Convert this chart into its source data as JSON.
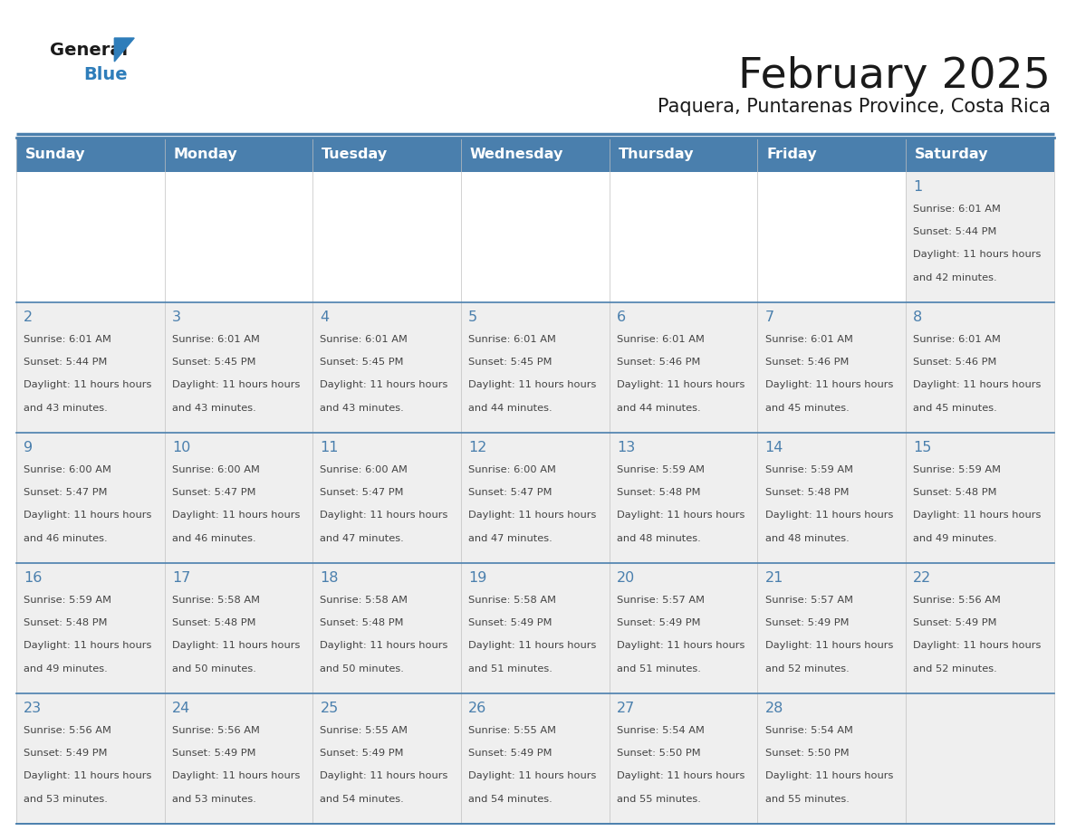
{
  "title": "February 2025",
  "subtitle": "Paquera, Puntarenas Province, Costa Rica",
  "header_bg": "#4a7fad",
  "header_text": "#ffffff",
  "cell_bg_light": "#efefef",
  "cell_bg_white": "#ffffff",
  "border_color": "#4a7fad",
  "row_border_color": "#4a7fad",
  "day_headers": [
    "Sunday",
    "Monday",
    "Tuesday",
    "Wednesday",
    "Thursday",
    "Friday",
    "Saturday"
  ],
  "title_color": "#1a1a1a",
  "subtitle_color": "#1a1a1a",
  "text_color": "#444444",
  "number_color": "#4a7fad",
  "calendar_data": [
    [
      null,
      null,
      null,
      null,
      null,
      null,
      1
    ],
    [
      2,
      3,
      4,
      5,
      6,
      7,
      8
    ],
    [
      9,
      10,
      11,
      12,
      13,
      14,
      15
    ],
    [
      16,
      17,
      18,
      19,
      20,
      21,
      22
    ],
    [
      23,
      24,
      25,
      26,
      27,
      28,
      null
    ]
  ],
  "sunrise_data": {
    "1": [
      "6:01 AM",
      "5:44 PM",
      "11 hours",
      "42 minutes"
    ],
    "2": [
      "6:01 AM",
      "5:44 PM",
      "11 hours",
      "43 minutes"
    ],
    "3": [
      "6:01 AM",
      "5:45 PM",
      "11 hours",
      "43 minutes"
    ],
    "4": [
      "6:01 AM",
      "5:45 PM",
      "11 hours",
      "43 minutes"
    ],
    "5": [
      "6:01 AM",
      "5:45 PM",
      "11 hours",
      "44 minutes"
    ],
    "6": [
      "6:01 AM",
      "5:46 PM",
      "11 hours",
      "44 minutes"
    ],
    "7": [
      "6:01 AM",
      "5:46 PM",
      "11 hours",
      "45 minutes"
    ],
    "8": [
      "6:01 AM",
      "5:46 PM",
      "11 hours",
      "45 minutes"
    ],
    "9": [
      "6:00 AM",
      "5:47 PM",
      "11 hours",
      "46 minutes"
    ],
    "10": [
      "6:00 AM",
      "5:47 PM",
      "11 hours",
      "46 minutes"
    ],
    "11": [
      "6:00 AM",
      "5:47 PM",
      "11 hours",
      "47 minutes"
    ],
    "12": [
      "6:00 AM",
      "5:47 PM",
      "11 hours",
      "47 minutes"
    ],
    "13": [
      "5:59 AM",
      "5:48 PM",
      "11 hours",
      "48 minutes"
    ],
    "14": [
      "5:59 AM",
      "5:48 PM",
      "11 hours",
      "48 minutes"
    ],
    "15": [
      "5:59 AM",
      "5:48 PM",
      "11 hours",
      "49 minutes"
    ],
    "16": [
      "5:59 AM",
      "5:48 PM",
      "11 hours",
      "49 minutes"
    ],
    "17": [
      "5:58 AM",
      "5:48 PM",
      "11 hours",
      "50 minutes"
    ],
    "18": [
      "5:58 AM",
      "5:48 PM",
      "11 hours",
      "50 minutes"
    ],
    "19": [
      "5:58 AM",
      "5:49 PM",
      "11 hours",
      "51 minutes"
    ],
    "20": [
      "5:57 AM",
      "5:49 PM",
      "11 hours",
      "51 minutes"
    ],
    "21": [
      "5:57 AM",
      "5:49 PM",
      "11 hours",
      "52 minutes"
    ],
    "22": [
      "5:56 AM",
      "5:49 PM",
      "11 hours",
      "52 minutes"
    ],
    "23": [
      "5:56 AM",
      "5:49 PM",
      "11 hours",
      "53 minutes"
    ],
    "24": [
      "5:56 AM",
      "5:49 PM",
      "11 hours",
      "53 minutes"
    ],
    "25": [
      "5:55 AM",
      "5:49 PM",
      "11 hours",
      "54 minutes"
    ],
    "26": [
      "5:55 AM",
      "5:49 PM",
      "11 hours",
      "54 minutes"
    ],
    "27": [
      "5:54 AM",
      "5:50 PM",
      "11 hours",
      "55 minutes"
    ],
    "28": [
      "5:54 AM",
      "5:50 PM",
      "11 hours",
      "55 minutes"
    ]
  }
}
